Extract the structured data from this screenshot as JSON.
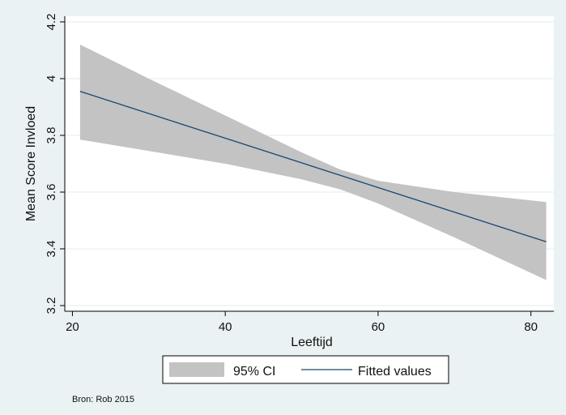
{
  "chart_data": {
    "type": "line",
    "xlabel": "Leeftijd",
    "ylabel": "Mean Score Invloed",
    "xlim": [
      19,
      83
    ],
    "ylim": [
      3.18,
      4.22
    ],
    "x_ticks": [
      20,
      40,
      60,
      80
    ],
    "y_ticks": [
      3.2,
      3.4,
      3.6,
      3.8,
      4,
      4.2
    ],
    "x_tick_labels": [
      "20",
      "40",
      "60",
      "80"
    ],
    "y_tick_labels": [
      "3.2",
      "3.4",
      "3.6",
      "3.8",
      "4",
      "4.2"
    ],
    "grid": "horizontal",
    "legend_position": "bottom",
    "series": [
      {
        "name": "95% CI",
        "kind": "band",
        "x": [
          21,
          30,
          40,
          50,
          55,
          60,
          70,
          82
        ],
        "upper": [
          4.12,
          4.0,
          3.87,
          3.74,
          3.68,
          3.64,
          3.6,
          3.565
        ],
        "lower": [
          3.785,
          3.745,
          3.7,
          3.645,
          3.61,
          3.56,
          3.44,
          3.29
        ]
      },
      {
        "name": "Fitted values",
        "kind": "line",
        "x": [
          21,
          82
        ],
        "y": [
          3.955,
          3.425
        ]
      }
    ],
    "source_note": "Bron: Rob 2015"
  },
  "colors": {
    "background": "#eaf2f3",
    "plot_background": "#ffffff",
    "band": "#c3c3c3",
    "line": "#1a476f",
    "grid": "#e4ecee",
    "axis": "#000000"
  }
}
